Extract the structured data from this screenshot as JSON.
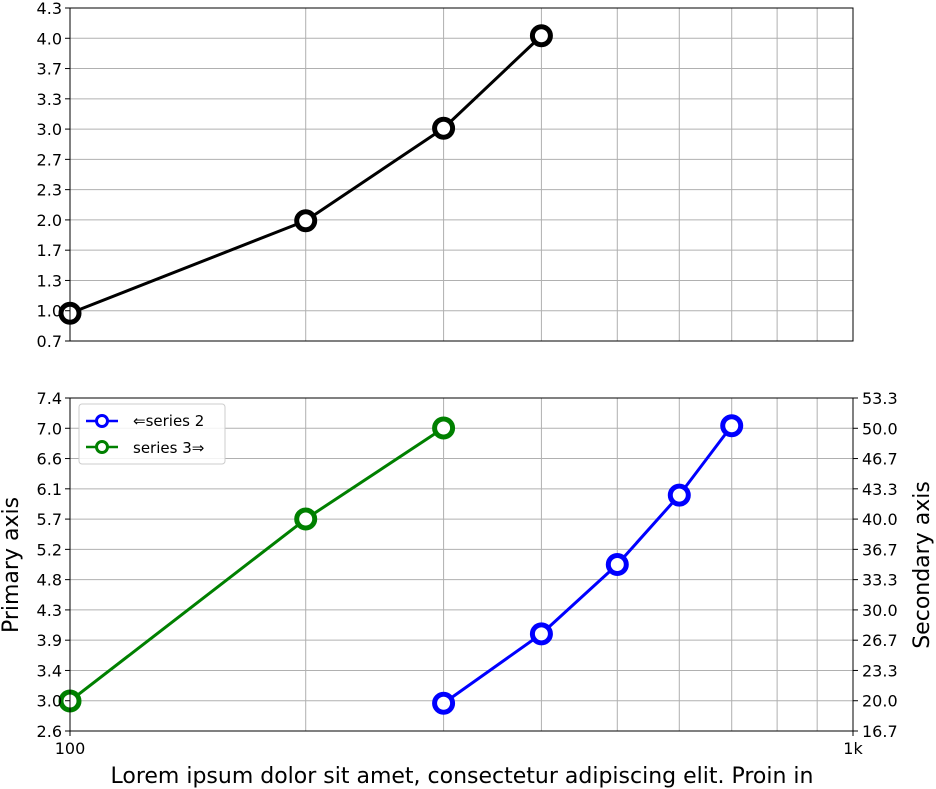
{
  "chart_data": [
    {
      "type": "line",
      "x_scale": "log",
      "x_range": [
        100,
        1000
      ],
      "y_range": [
        0.7,
        4.3
      ],
      "y_ticks": [
        "0.7",
        "1.0",
        "1.3",
        "1.7",
        "2.0",
        "2.3",
        "2.7",
        "3.0",
        "3.3",
        "3.7",
        "4.0",
        "4.3"
      ],
      "x_tick_labels": [],
      "grid": true,
      "series": [
        {
          "color": "#000000",
          "x": [
            100,
            200,
            300,
            400
          ],
          "y": [
            1,
            2,
            3,
            4
          ]
        }
      ]
    },
    {
      "type": "line",
      "x_scale": "log",
      "x_range": [
        100,
        1000
      ],
      "x_tick_labels": [
        "100",
        "1k"
      ],
      "xlabel": "Lorem ipsum dolor sit amet, consectetur adipiscing elit. Proin in",
      "ylabel": "Primary axis",
      "y2label": "Secondary axis",
      "y_range": [
        2.6,
        7.4
      ],
      "y_ticks": [
        "2.6",
        "3.0",
        "3.4",
        "3.9",
        "4.3",
        "4.8",
        "5.2",
        "5.7",
        "6.1",
        "6.6",
        "7.0",
        "7.4"
      ],
      "y2_range": [
        16.7,
        53.3
      ],
      "y2_ticks": [
        "16.7",
        "20.0",
        "23.3",
        "26.7",
        "30.0",
        "33.3",
        "36.7",
        "40.0",
        "43.3",
        "46.7",
        "50.0",
        "53.3"
      ],
      "grid": true,
      "legend_position": "top-left",
      "series": [
        {
          "name": "⇐series 2",
          "color": "#0000ff",
          "axis": "primary",
          "x": [
            300,
            400,
            500,
            600,
            700
          ],
          "y": [
            3,
            4,
            5,
            6,
            7
          ]
        },
        {
          "name": "series 3⇒",
          "color": "#008000",
          "axis": "secondary",
          "x": [
            100,
            200,
            300
          ],
          "y": [
            20,
            40,
            50
          ]
        }
      ]
    }
  ]
}
